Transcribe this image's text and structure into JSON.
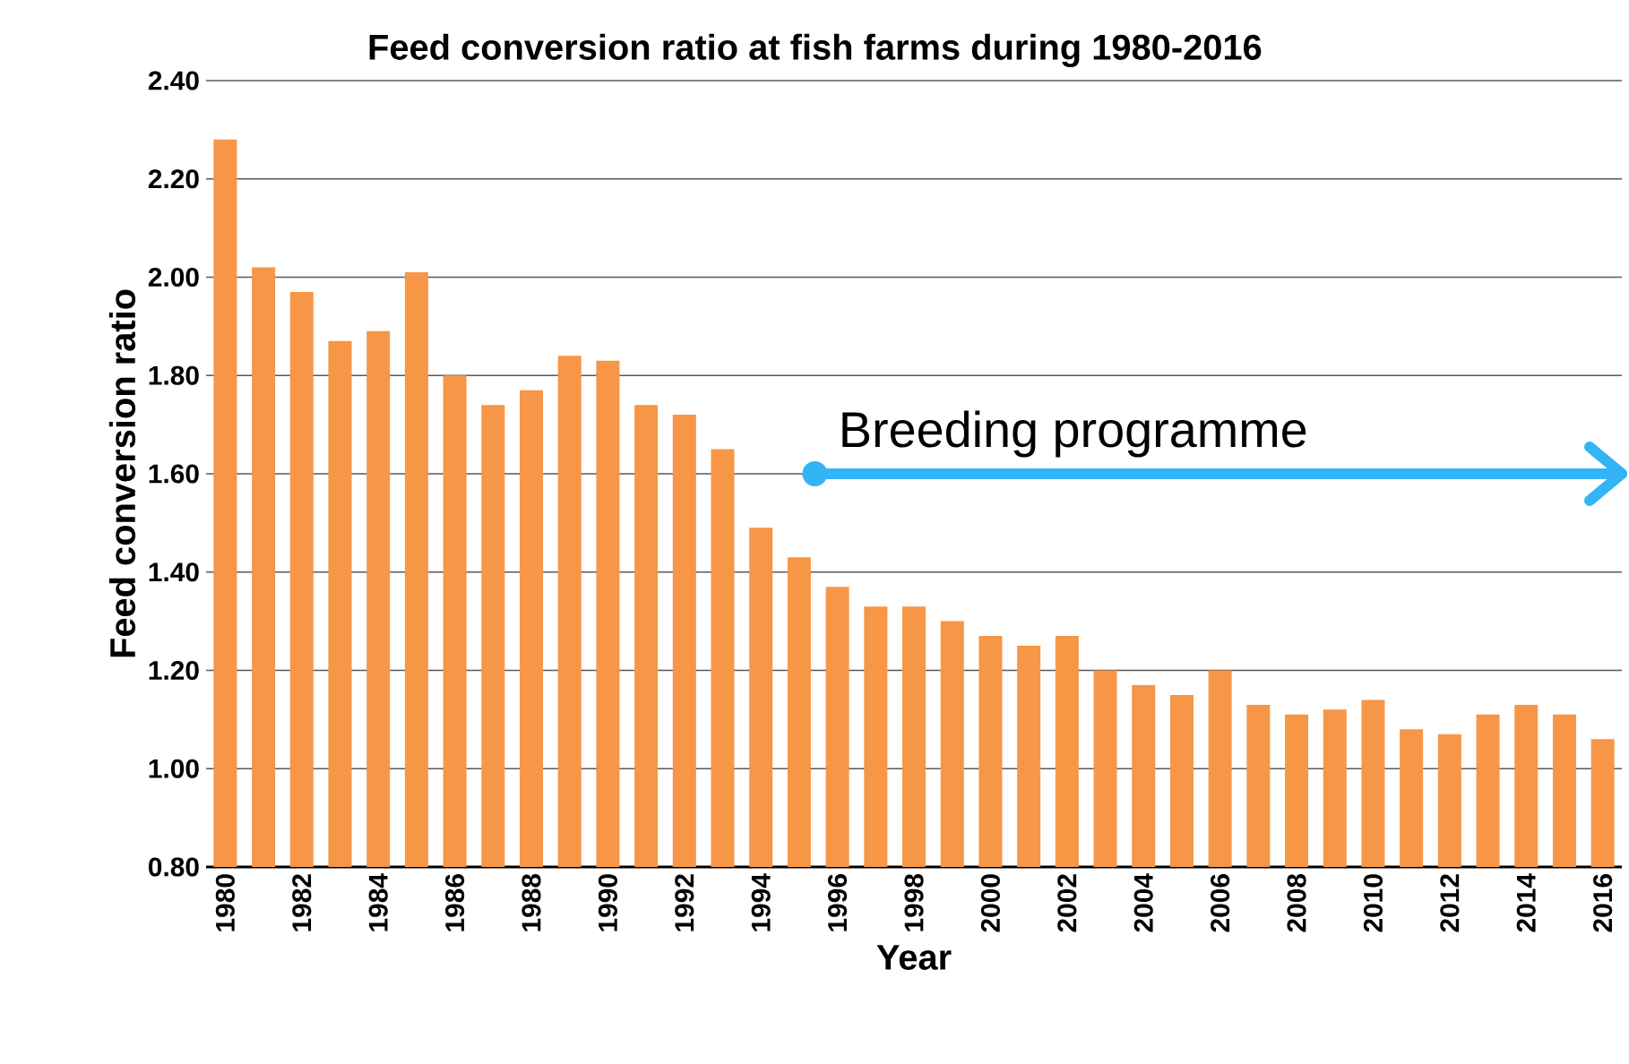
{
  "chart_data": {
    "type": "bar",
    "title": "Feed conversion ratio at fish farms during 1980-2016",
    "xlabel": "Year",
    "ylabel": "Feed conversion ratio",
    "categories": [
      "1980",
      null,
      "1982",
      null,
      "1984",
      null,
      "1986",
      null,
      "1988",
      null,
      "1990",
      null,
      "1992",
      null,
      "1994",
      null,
      "1996",
      null,
      "1998",
      null,
      "2000",
      null,
      "2002",
      null,
      "2004",
      null,
      "2006",
      null,
      "2008",
      null,
      "2010",
      null,
      "2012",
      null,
      "2014",
      null,
      "2016"
    ],
    "values": [
      2.28,
      2.02,
      1.97,
      1.87,
      1.89,
      2.01,
      1.8,
      1.74,
      1.77,
      1.84,
      1.83,
      1.74,
      1.72,
      1.65,
      1.49,
      1.43,
      1.37,
      1.33,
      1.33,
      1.3,
      1.27,
      1.25,
      1.27,
      1.2,
      1.17,
      1.15,
      1.2,
      1.13,
      1.11,
      1.12,
      1.14,
      1.08,
      1.07,
      1.11,
      1.13,
      1.11,
      1.06
    ],
    "color": "#f79646",
    "ylim": [
      0.8,
      2.4
    ],
    "yticks": [
      {
        "value": 0.8,
        "label": "0.80"
      },
      {
        "value": 1.0,
        "label": "1.00"
      },
      {
        "value": 1.2,
        "label": "1.20"
      },
      {
        "value": 1.4,
        "label": "1.40"
      },
      {
        "value": 1.6,
        "label": "1.60"
      },
      {
        "value": 1.8,
        "label": "1.80"
      },
      {
        "value": 2.0,
        "label": "2.00"
      },
      {
        "value": 2.2,
        "label": "2.20"
      },
      {
        "value": 2.4,
        "label": "2.40"
      }
    ],
    "grid": "y",
    "annotations": [
      "Breeding programme"
    ]
  }
}
